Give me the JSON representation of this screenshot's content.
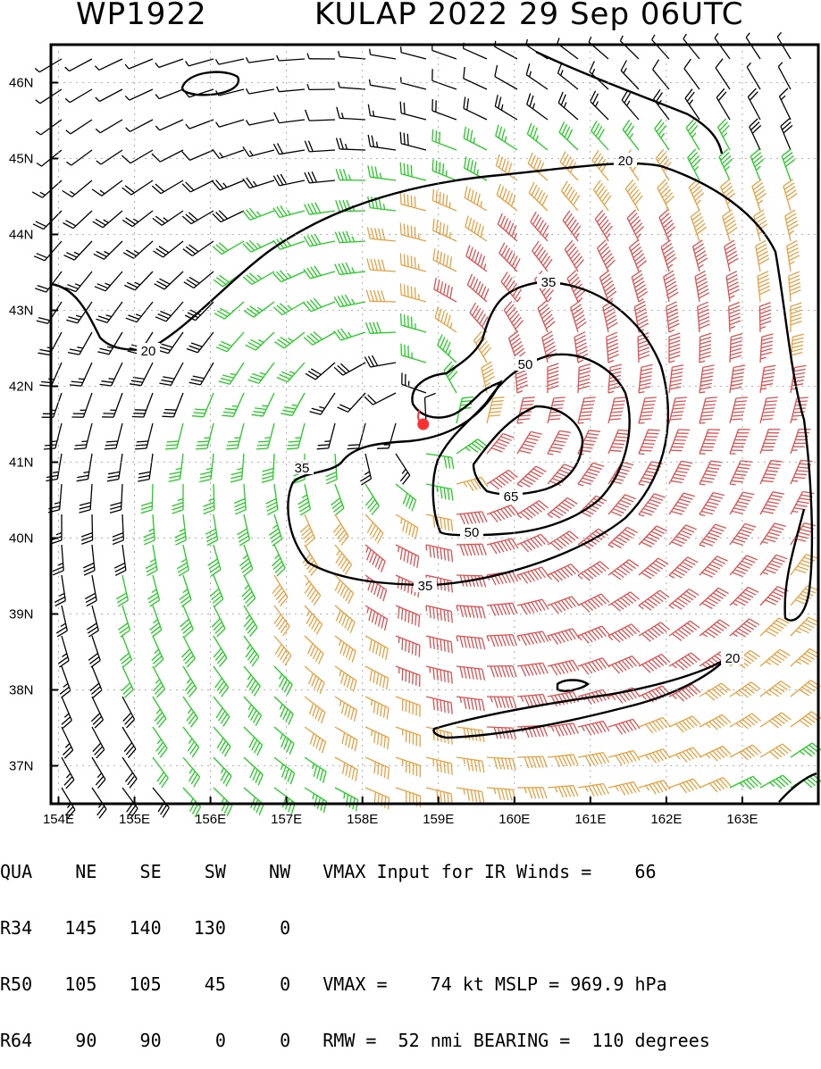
{
  "header": {
    "storm_id": "WP1922",
    "storm_title": "KULAP 2022 29 Sep 06UTC"
  },
  "map": {
    "lon_range": [
      153.9,
      164.0
    ],
    "lat_range": [
      36.5,
      46.5
    ],
    "lon_ticks": [
      "154E",
      "155E",
      "156E",
      "157E",
      "158E",
      "159E",
      "160E",
      "161E",
      "162E",
      "163E"
    ],
    "lat_ticks": [
      "46N",
      "45N",
      "44N",
      "43N",
      "42N",
      "41N",
      "40N",
      "39N",
      "38N",
      "37N"
    ],
    "contour_labels": [
      "20",
      "20",
      "20",
      "35",
      "35",
      "35",
      "50",
      "50",
      "65"
    ],
    "storm_center": {
      "lon": 158.8,
      "lat": 41.5
    },
    "colors": {
      "below_34kt": "#000000",
      "34_49kt": "#22cc22",
      "50_63kt": "#e8a040",
      "64_plus_kt": "#e05050",
      "center_marker": "#ff3030",
      "contour": "#000000"
    }
  },
  "table": {
    "header": [
      "QUA",
      "NE",
      "SE",
      "SW",
      "NW"
    ],
    "rows": [
      {
        "label": "R34",
        "values": [
          "145",
          "140",
          "130",
          "0"
        ]
      },
      {
        "label": "R50",
        "values": [
          "105",
          "105",
          "45",
          "0"
        ]
      },
      {
        "label": "R64",
        "values": [
          "90",
          "90",
          "0",
          "0"
        ]
      }
    ]
  },
  "info": {
    "vmax_ir_label": "VMAX Input for IR Winds =",
    "vmax_ir_value": "66",
    "vmax_label": "VMAX =",
    "vmax_value": "74",
    "vmax_unit": "kt",
    "mslp_label": "MSLP =",
    "mslp_value": "969.9",
    "mslp_unit": "hPa",
    "rmw_label": "RMW =",
    "rmw_value": "52",
    "rmw_unit": "nmi",
    "bearing_label": "BEARING =",
    "bearing_value": "110",
    "bearing_unit": "degrees"
  }
}
